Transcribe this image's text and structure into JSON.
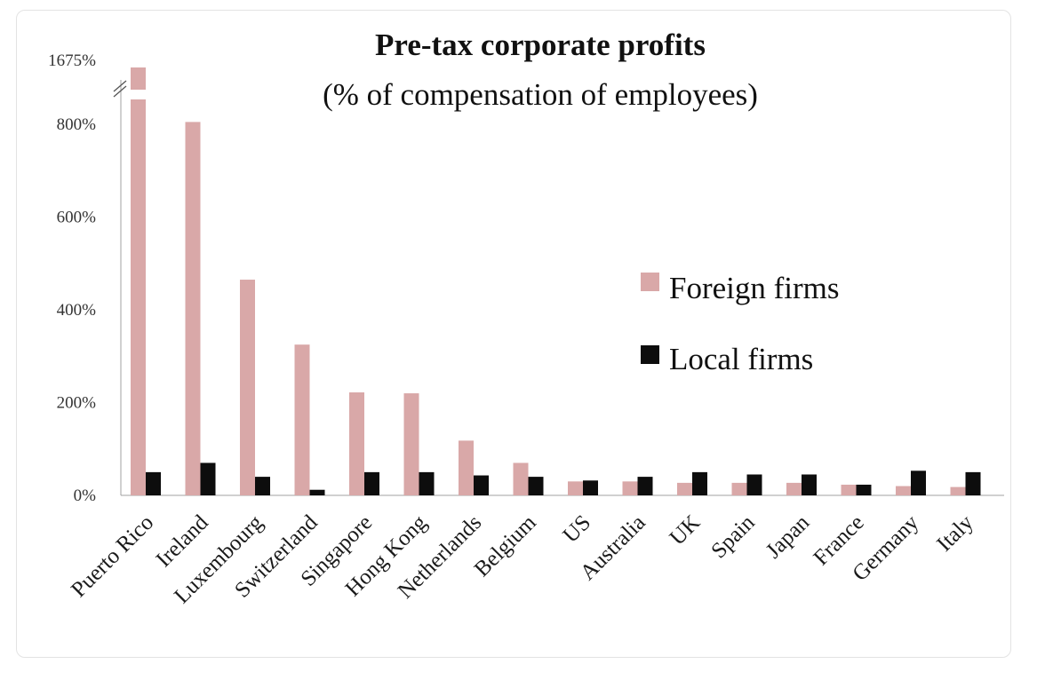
{
  "chart_data": {
    "type": "bar",
    "title": "Pre-tax corporate profits",
    "subtitle": "(% of compensation of employees)",
    "xlabel": "",
    "ylabel": "",
    "ylim": [
      0,
      900
    ],
    "axis_break": {
      "after_tick": "800%",
      "top_tick_label": "1675%"
    },
    "yticks": [
      "0%",
      "200%",
      "400%",
      "600%",
      "800%"
    ],
    "categories": [
      "Puerto Rico",
      "Ireland",
      "Luxembourg",
      "Switzerland",
      "Singapore",
      "Hong Kong",
      "Netherlands",
      "Belgium",
      "US",
      "Australia",
      "UK",
      "Spain",
      "Japan",
      "France",
      "Germany",
      "Italy"
    ],
    "series": [
      {
        "name": "Foreign firms",
        "color": "#d9a8a8",
        "values": [
          1675,
          805,
          465,
          325,
          222,
          220,
          118,
          70,
          30,
          30,
          27,
          27,
          27,
          23,
          20,
          18
        ]
      },
      {
        "name": "Local firms",
        "color": "#0d0d0d",
        "values": [
          50,
          70,
          40,
          12,
          50,
          50,
          43,
          40,
          32,
          40,
          50,
          45,
          45,
          23,
          53,
          50
        ]
      }
    ],
    "legend": "right-middle"
  }
}
